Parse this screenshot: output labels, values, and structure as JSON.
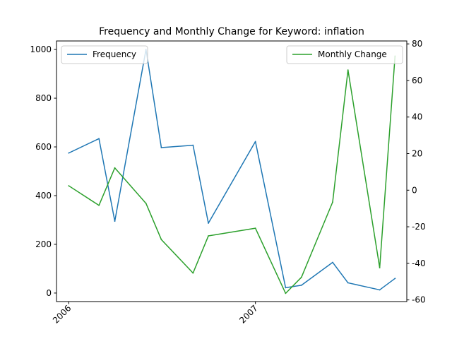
{
  "chart_data": {
    "type": "line",
    "title": "Frequency and Monthly Change for Keyword: inflation",
    "xlabel": "",
    "ylabel": "",
    "x": [
      "2006-01",
      "2006-03",
      "2006-04",
      "2006-06",
      "2006-07",
      "2006-09",
      "2006-10",
      "2007-01",
      "2007-03",
      "2007-04",
      "2007-06",
      "2007-07",
      "2007-09",
      "2007-10"
    ],
    "xlim": [
      "2005-12-08",
      "2007-10-24"
    ],
    "x_ticks": [
      "2006",
      "2007"
    ],
    "series": [
      {
        "name": "Frequency",
        "axis": "left",
        "color": "#1f77b4",
        "values": [
          575,
          634,
          295,
          1000,
          597,
          607,
          287,
          622,
          22,
          32,
          126,
          42,
          13,
          60
        ]
      },
      {
        "name": "Monthly Change",
        "axis": "right",
        "color": "#2ca02c",
        "values": [
          2.4,
          -8.3,
          12.2,
          -7.2,
          -27.0,
          -45.3,
          -25.0,
          -20.8,
          -56.4,
          -47.6,
          -6.5,
          65.7,
          -42.4,
          73.3
        ]
      }
    ],
    "y_left": {
      "ylim": [
        -35,
        1035
      ],
      "ticks": [
        0,
        200,
        400,
        600,
        800,
        1000
      ]
    },
    "y_right": {
      "ylim": [
        -60.9,
        81.6
      ],
      "ticks": [
        -60,
        -40,
        -20,
        0,
        20,
        40,
        60,
        80
      ]
    },
    "legends": [
      {
        "placement": "top-left",
        "entries": [
          "Frequency"
        ]
      },
      {
        "placement": "top-right",
        "entries": [
          "Monthly Change"
        ]
      }
    ],
    "grid": false
  }
}
